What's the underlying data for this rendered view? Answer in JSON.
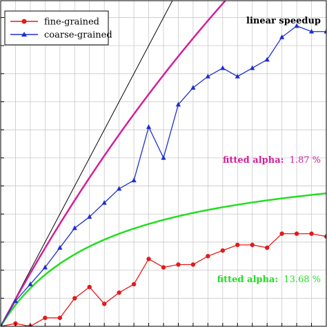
{
  "chart_data": {
    "type": "line",
    "title": "",
    "xlabel": "",
    "ylabel": "",
    "x_range": [
      1,
      23
    ],
    "y_range": [
      1,
      12.6
    ],
    "grid": true,
    "legend_position": "top-left",
    "legend": [
      {
        "label": "fine-grained",
        "series": "fine"
      },
      {
        "label": "coarse-grained",
        "series": "coarse"
      }
    ],
    "series": [
      {
        "key": "fine",
        "name": "fine-grained",
        "color": "#e31a1c",
        "marker": "circle",
        "x": [
          1,
          2,
          3,
          4,
          5,
          6,
          7,
          8,
          9,
          10,
          11,
          12,
          13,
          14,
          15,
          16,
          17,
          18,
          19,
          20,
          21,
          22,
          23
        ],
        "y": [
          1.0,
          1.1,
          1.0,
          1.3,
          1.3,
          2.0,
          2.4,
          1.8,
          2.2,
          2.5,
          3.4,
          3.1,
          3.2,
          3.2,
          3.5,
          3.7,
          3.9,
          3.9,
          3.8,
          4.3,
          4.3,
          4.3,
          4.2
        ]
      },
      {
        "key": "coarse",
        "name": "coarse-grained",
        "color": "#1f2fcc",
        "marker": "triangle",
        "x": [
          1,
          2,
          3,
          4,
          5,
          6,
          7,
          8,
          9,
          10,
          11,
          12,
          13,
          14,
          15,
          16,
          17,
          18,
          19,
          20,
          21,
          22,
          23
        ],
        "y": [
          1.0,
          1.9,
          2.5,
          3.1,
          3.8,
          4.5,
          4.9,
          5.4,
          5.9,
          6.2,
          8.1,
          7.0,
          8.9,
          9.5,
          9.9,
          10.2,
          9.9,
          10.2,
          10.5,
          11.3,
          11.7,
          11.5,
          11.5
        ]
      }
    ],
    "reference_lines": [
      {
        "name": "linear speedup",
        "color": "#000000",
        "x": [
          1,
          23
        ],
        "y": [
          1,
          23
        ]
      }
    ],
    "fits": [
      {
        "series": "coarse",
        "color": "#d0209a",
        "label_prefix": "fitted alpha:",
        "label_value": "1.87 %",
        "alpha": 0.0187
      },
      {
        "series": "fine",
        "color": "#22dd22",
        "label_prefix": "fitted alpha:",
        "label_value": "13.68 %",
        "alpha": 0.1368
      }
    ],
    "annotations": [
      {
        "text": "linear speedup",
        "color": "#000000"
      }
    ]
  }
}
